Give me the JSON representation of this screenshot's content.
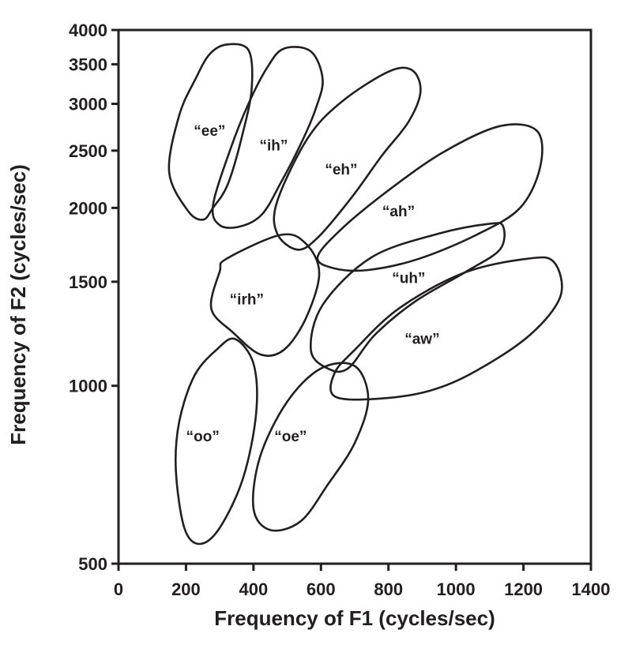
{
  "chart_data": {
    "type": "scatter",
    "xlabel": "Frequency of F1 (cycles/sec)",
    "ylabel": "Frequency of F2 (cycles/sec)",
    "xlim": [
      0,
      1400
    ],
    "ylim": [
      500,
      4000
    ],
    "y_scale": "log",
    "grid": false,
    "x_ticks": [
      0,
      200,
      400,
      600,
      800,
      1000,
      1200,
      1400
    ],
    "y_ticks": [
      500,
      1000,
      1500,
      2000,
      2500,
      3000,
      3500,
      4000
    ],
    "regions": [
      {
        "label": "“ee”",
        "label_at": [
          270,
          2700
        ],
        "outline": [
          [
            320,
            3780
          ],
          [
            385,
            3700
          ],
          [
            395,
            3200
          ],
          [
            370,
            2700
          ],
          [
            325,
            2200
          ],
          [
            280,
            2000
          ],
          [
            250,
            1910
          ],
          [
            205,
            1980
          ],
          [
            150,
            2300
          ],
          [
            180,
            2870
          ],
          [
            230,
            3320
          ],
          [
            270,
            3640
          ]
        ]
      },
      {
        "label": "“ih”",
        "label_at": [
          460,
          2550
        ],
        "outline": [
          [
            490,
            3720
          ],
          [
            570,
            3680
          ],
          [
            605,
            3300
          ],
          [
            585,
            2950
          ],
          [
            545,
            2600
          ],
          [
            480,
            2200
          ],
          [
            425,
            1950
          ],
          [
            360,
            1860
          ],
          [
            300,
            1870
          ],
          [
            280,
            2020
          ],
          [
            330,
            2500
          ],
          [
            385,
            3000
          ],
          [
            440,
            3450
          ]
        ]
      },
      {
        "label": "“eh”",
        "label_at": [
          660,
          2320
        ],
        "outline": [
          [
            800,
            3400
          ],
          [
            870,
            3420
          ],
          [
            895,
            3150
          ],
          [
            860,
            2800
          ],
          [
            780,
            2450
          ],
          [
            690,
            2080
          ],
          [
            590,
            1780
          ],
          [
            530,
            1700
          ],
          [
            470,
            1810
          ],
          [
            470,
            2050
          ],
          [
            560,
            2620
          ],
          [
            660,
            3020
          ]
        ]
      },
      {
        "label": "“ah”",
        "label_at": [
          830,
          1970
        ],
        "outline": [
          [
            1130,
            2750
          ],
          [
            1240,
            2700
          ],
          [
            1250,
            2350
          ],
          [
            1190,
            2000
          ],
          [
            1060,
            1800
          ],
          [
            890,
            1640
          ],
          [
            740,
            1570
          ],
          [
            640,
            1580
          ],
          [
            590,
            1650
          ],
          [
            660,
            1840
          ],
          [
            790,
            2120
          ],
          [
            960,
            2480
          ]
        ]
      },
      {
        "label": "“uh”",
        "label_at": [
          860,
          1520
        ],
        "outline": [
          [
            1100,
            1880
          ],
          [
            1140,
            1860
          ],
          [
            1130,
            1700
          ],
          [
            1030,
            1560
          ],
          [
            880,
            1390
          ],
          [
            760,
            1220
          ],
          [
            680,
            1070
          ],
          [
            620,
            1070
          ],
          [
            570,
            1150
          ],
          [
            605,
            1370
          ],
          [
            750,
            1650
          ],
          [
            950,
            1810
          ]
        ]
      },
      {
        "label": "“aw”",
        "label_at": [
          900,
          1200
        ],
        "outline": [
          [
            1210,
            1640
          ],
          [
            1290,
            1620
          ],
          [
            1310,
            1420
          ],
          [
            1220,
            1220
          ],
          [
            1060,
            1060
          ],
          [
            920,
            980
          ],
          [
            760,
            950
          ],
          [
            640,
            960
          ],
          [
            640,
            1050
          ],
          [
            700,
            1150
          ],
          [
            830,
            1350
          ],
          [
            1020,
            1550
          ]
        ]
      },
      {
        "label": "“irh”",
        "label_at": [
          380,
          1400
        ],
        "outline": [
          [
            320,
            1640
          ],
          [
            480,
            1800
          ],
          [
            555,
            1740
          ],
          [
            595,
            1550
          ],
          [
            555,
            1300
          ],
          [
            490,
            1150
          ],
          [
            420,
            1130
          ],
          [
            340,
            1230
          ],
          [
            275,
            1350
          ],
          [
            300,
            1560
          ]
        ]
      },
      {
        "label": "“oo”",
        "label_at": [
          250,
          820
        ],
        "outline": [
          [
            345,
            1200
          ],
          [
            400,
            1090
          ],
          [
            408,
            900
          ],
          [
            370,
            700
          ],
          [
            300,
            575
          ],
          [
            240,
            540
          ],
          [
            195,
            575
          ],
          [
            170,
            720
          ],
          [
            180,
            870
          ],
          [
            225,
            1040
          ],
          [
            290,
            1150
          ]
        ]
      },
      {
        "label": "“oe”",
        "label_at": [
          510,
          820
        ],
        "outline": [
          [
            600,
            1070
          ],
          [
            700,
            1080
          ],
          [
            740,
            950
          ],
          [
            700,
            800
          ],
          [
            620,
            680
          ],
          [
            540,
            590
          ],
          [
            450,
            570
          ],
          [
            400,
            620
          ],
          [
            420,
            760
          ],
          [
            500,
            940
          ]
        ]
      }
    ]
  }
}
